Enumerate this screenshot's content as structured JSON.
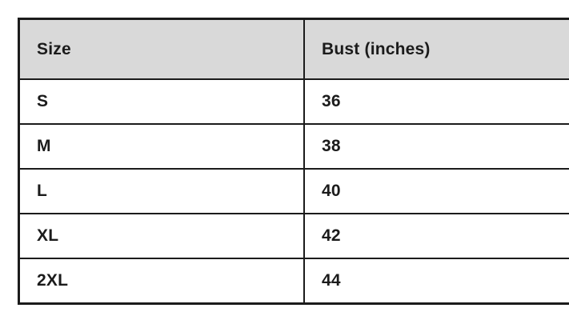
{
  "colors": {
    "header_bg": "#d9d9d9",
    "border": "#1b1b1b",
    "text": "#1b1b1b",
    "page_bg": "#ffffff"
  },
  "table": {
    "headers": [
      "Size",
      "Bust (inches)"
    ],
    "rows": [
      [
        "S",
        "36"
      ],
      [
        "M",
        "38"
      ],
      [
        "L",
        "40"
      ],
      [
        "XL",
        "42"
      ],
      [
        "2XL",
        "44"
      ]
    ]
  },
  "chart_data": {
    "type": "table",
    "title": "",
    "columns": [
      "Size",
      "Bust (inches)"
    ],
    "rows": [
      {
        "size": "S",
        "bust_inches": 36
      },
      {
        "size": "M",
        "bust_inches": 38
      },
      {
        "size": "L",
        "bust_inches": 40
      },
      {
        "size": "XL",
        "bust_inches": 42
      },
      {
        "size": "2XL",
        "bust_inches": 44
      }
    ],
    "legend": "none",
    "grid": "full-borders"
  }
}
